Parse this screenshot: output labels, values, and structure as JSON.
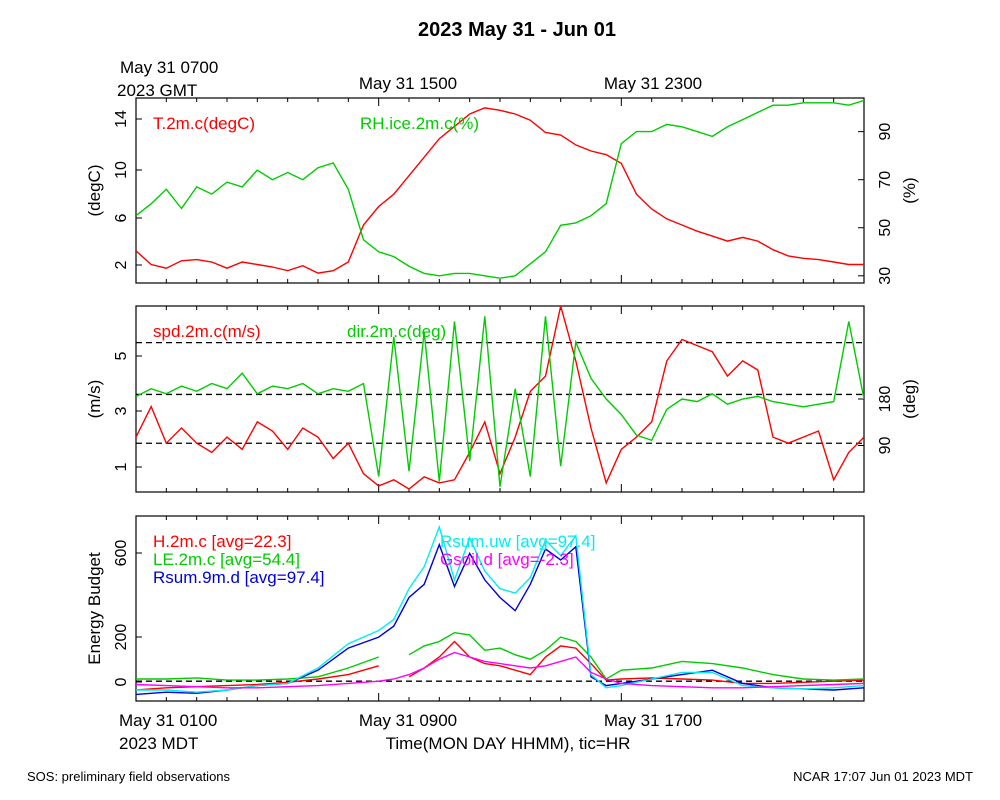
{
  "page": {
    "title": "2023 May 31 - Jun 01",
    "footer_left": "SOS: preliminary field observations",
    "footer_right": "NCAR 17:07 Jun 01 2023 MDT",
    "top_axis": {
      "first_line1": "May 31 0700",
      "first_line2": "2023 GMT",
      "tick2": "May 31 1500",
      "tick3": "May 31 2300"
    },
    "bottom_axis": {
      "first_line1": "May 31 0100",
      "first_line2": "2023 MDT",
      "tick2": "May 31 0900",
      "tick3": "May 31 1700",
      "xlabel": "Time(MON DAY HHMM), tic=HR"
    }
  },
  "colors": {
    "red": "#ff0000",
    "green": "#00cc00",
    "blue": "#0000dd",
    "cyan": "#00eeee",
    "magenta": "#ff00ff"
  },
  "chart_data": [
    {
      "type": "line",
      "x_unit": "hours since May 31 0100 MDT",
      "xlim": [
        0,
        24
      ],
      "ylabel_left": "(degC)",
      "ylabel_right": "(%)",
      "left_ticks": [
        "2",
        "6",
        "10",
        "14"
      ],
      "right_ticks": [
        "30",
        "50",
        "70",
        "90"
      ],
      "ylim_left": [
        0.8,
        15.8
      ],
      "ylim_right": [
        27,
        104
      ],
      "series": [
        {
          "name": "T.2m.c(degC)",
          "color": "red",
          "axis": "left",
          "x": [
            0,
            0.5,
            1,
            1.5,
            2,
            2.5,
            3,
            3.5,
            4,
            4.5,
            5,
            5.5,
            6,
            6.5,
            7,
            7.5,
            8,
            8.5,
            9,
            9.5,
            10,
            10.5,
            11,
            11.5,
            12,
            12.5,
            13,
            13.5,
            14,
            14.5,
            15,
            15.5,
            16,
            16.5,
            17,
            17.5,
            18,
            18.5,
            19,
            19.5,
            20,
            20.5,
            21,
            21.5,
            22,
            22.5,
            23,
            23.5,
            24
          ],
          "y": [
            3.4,
            2.3,
            2.0,
            2.6,
            2.7,
            2.5,
            2.0,
            2.5,
            2.3,
            2.1,
            1.8,
            2.2,
            1.6,
            1.8,
            2.5,
            5.5,
            7.0,
            8.0,
            9.5,
            11.0,
            12.5,
            13.5,
            14.5,
            15.0,
            14.8,
            14.5,
            14.0,
            13.0,
            12.8,
            12.0,
            11.5,
            11.2,
            10.5,
            8.0,
            6.8,
            6.0,
            5.5,
            5.0,
            4.6,
            4.2,
            4.5,
            4.2,
            3.5,
            3.0,
            2.8,
            2.7,
            2.5,
            2.3,
            2.3
          ]
        },
        {
          "name": "RH.ice.2m.c(%)",
          "color": "green",
          "axis": "right",
          "x": [
            0,
            0.5,
            1,
            1.5,
            2,
            2.5,
            3,
            3.5,
            4,
            4.5,
            5,
            5.5,
            6,
            6.5,
            7,
            7.5,
            8,
            8.5,
            9,
            9.5,
            10,
            10.5,
            11,
            11.5,
            12,
            12.5,
            13,
            13.5,
            14,
            14.5,
            15,
            15.5,
            16,
            16.5,
            17,
            17.5,
            18,
            18.5,
            19,
            19.5,
            20,
            20.5,
            21,
            21.5,
            22,
            22.5,
            23,
            23.5,
            24
          ],
          "y": [
            55,
            60,
            66,
            58,
            67,
            64,
            69,
            67,
            74,
            70,
            73,
            70,
            75,
            77,
            66,
            45,
            40,
            38,
            34,
            31,
            30,
            31,
            31,
            30,
            29,
            30,
            35,
            40,
            51,
            52,
            55,
            60,
            85,
            90,
            90,
            93,
            92,
            90,
            88,
            92,
            95,
            98,
            101,
            101,
            102,
            102,
            102,
            101,
            103
          ]
        }
      ]
    },
    {
      "type": "line",
      "x_unit": "hours since May 31 0100 MDT",
      "xlim": [
        0,
        24
      ],
      "ylabel_left": "(m/s)",
      "ylabel_right": "(deg)",
      "left_ticks": [
        "1",
        "3",
        "5"
      ],
      "right_ticks": [
        "90",
        "180"
      ],
      "ylim_left": [
        0.2,
        6.3
      ],
      "ylim_right": [
        0,
        360
      ],
      "reference_lines_left": [
        1.8,
        3.4,
        5.1
      ],
      "series": [
        {
          "name": "spd.2m.c(m/s)",
          "color": "red",
          "axis": "left",
          "x": [
            0,
            0.5,
            1,
            1.5,
            2,
            2.5,
            3,
            3.5,
            4,
            4.5,
            5,
            5.5,
            6,
            6.5,
            7,
            7.5,
            8,
            8.5,
            9,
            9.5,
            10,
            10.5,
            11,
            11.5,
            12,
            12.5,
            13,
            13.5,
            14,
            14.5,
            15,
            15.5,
            16,
            16.5,
            17,
            17.5,
            18,
            18.5,
            19,
            19.5,
            20,
            20.5,
            21,
            21.5,
            22,
            22.5,
            23,
            23.5,
            24
          ],
          "y": [
            2.0,
            3.0,
            1.8,
            2.3,
            1.8,
            1.5,
            2.0,
            1.6,
            2.5,
            2.2,
            1.6,
            2.3,
            2.0,
            1.3,
            1.8,
            0.8,
            0.4,
            0.6,
            0.3,
            0.7,
            0.5,
            0.6,
            1.5,
            2.5,
            0.8,
            2.0,
            3.5,
            4.0,
            6.3,
            4.5,
            2.3,
            0.5,
            1.6,
            2.0,
            2.5,
            4.5,
            5.2,
            5.0,
            4.8,
            4.0,
            4.5,
            4.2,
            2.0,
            1.8,
            2.0,
            2.2,
            0.6,
            1.5,
            2.0
          ]
        },
        {
          "name": "dir.2m.c(deg)",
          "color": "green",
          "axis": "right",
          "x": [
            0,
            0.5,
            1,
            1.5,
            2,
            2.5,
            3,
            3.5,
            4,
            4.5,
            5,
            5.5,
            6,
            6.5,
            7,
            7.5,
            8,
            8.5,
            9,
            9.5,
            10,
            10.5,
            11,
            11.5,
            12,
            12.5,
            13,
            13.5,
            14,
            14.5,
            15,
            15.5,
            16,
            16.5,
            17,
            17.5,
            18,
            18.5,
            19,
            19.5,
            20,
            20.5,
            21,
            21.5,
            22,
            22.5,
            23,
            23.5,
            24
          ],
          "y": [
            185,
            200,
            190,
            205,
            195,
            210,
            200,
            230,
            190,
            205,
            200,
            210,
            190,
            200,
            195,
            210,
            30,
            300,
            40,
            310,
            20,
            330,
            60,
            340,
            10,
            200,
            30,
            340,
            50,
            290,
            220,
            180,
            150,
            110,
            100,
            160,
            180,
            175,
            190,
            170,
            180,
            185,
            175,
            170,
            165,
            170,
            175,
            330,
            180
          ]
        }
      ]
    },
    {
      "type": "line",
      "x_unit": "hours since May 31 0100 MDT",
      "xlim": [
        0,
        24
      ],
      "ylabel_left": "Energy Budget",
      "left_ticks": [
        "0",
        "200",
        "600"
      ],
      "ylim": [
        -90,
        750
      ],
      "reference_lines": [
        0
      ],
      "series": [
        {
          "name": "H.2m.c [avg=22.3]",
          "color": "red",
          "x": [
            0,
            1,
            2,
            3,
            4,
            5,
            6,
            7,
            8,
            8.5,
            9,
            9.5,
            10,
            10.5,
            11,
            11.5,
            12,
            12.5,
            13,
            13.5,
            14,
            14.5,
            15,
            15.5,
            16,
            17,
            18,
            19,
            20,
            21,
            22,
            23,
            24
          ],
          "y": [
            -40,
            -30,
            -25,
            -20,
            -15,
            -5,
            10,
            30,
            70,
            null,
            20,
            60,
            110,
            180,
            110,
            80,
            70,
            50,
            30,
            110,
            160,
            150,
            80,
            5,
            10,
            15,
            10,
            5,
            -10,
            -10,
            -5,
            0,
            5
          ]
        },
        {
          "name": "LE.2m.c [avg=54.4]",
          "color": "green",
          "x": [
            0,
            1,
            2,
            3,
            4,
            5,
            6,
            7,
            8,
            8.5,
            9,
            9.5,
            10,
            10.5,
            11,
            11.5,
            12,
            12.5,
            13,
            13.5,
            14,
            14.5,
            15,
            15.5,
            16,
            17,
            18,
            19,
            20,
            21,
            22,
            23,
            24
          ],
          "y": [
            10,
            10,
            15,
            5,
            5,
            10,
            20,
            60,
            110,
            null,
            120,
            160,
            180,
            220,
            210,
            140,
            150,
            120,
            100,
            140,
            200,
            180,
            110,
            10,
            50,
            60,
            90,
            80,
            60,
            30,
            10,
            5,
            10
          ]
        },
        {
          "name": "Rsum.9m.d [avg=97.4]",
          "color": "blue",
          "x": [
            0,
            1,
            2,
            3,
            4,
            5,
            6,
            7,
            8,
            8.5,
            9,
            9.5,
            10,
            10.5,
            11,
            11.5,
            12,
            12.5,
            13,
            13.5,
            14,
            14.5,
            15,
            15.5,
            16,
            17,
            18,
            19,
            20,
            21,
            22,
            23,
            24
          ],
          "y": [
            -60,
            -50,
            -55,
            -40,
            -20,
            -10,
            50,
            150,
            200,
            250,
            380,
            440,
            620,
            430,
            580,
            460,
            380,
            320,
            440,
            600,
            550,
            610,
            20,
            -20,
            -10,
            10,
            30,
            50,
            -10,
            -30,
            -35,
            -40,
            -30
          ]
        },
        {
          "name": "Rsum.uw [avg=97.4]",
          "color": "cyan",
          "x": [
            0,
            1,
            2,
            3,
            4,
            5,
            6,
            7,
            8,
            8.5,
            9,
            9.5,
            10,
            10.5,
            11,
            11.5,
            12,
            12.5,
            13,
            13.5,
            14,
            14.5,
            15,
            15.5,
            16,
            17,
            18,
            19,
            20,
            21,
            22,
            23,
            24
          ],
          "y": [
            -40,
            -40,
            -50,
            -40,
            -20,
            -10,
            60,
            170,
            230,
            280,
            420,
            520,
            700,
            460,
            650,
            500,
            420,
            400,
            470,
            640,
            570,
            660,
            30,
            -30,
            -20,
            10,
            40,
            40,
            -20,
            -30,
            -35,
            -30,
            -20
          ]
        },
        {
          "name": "Gsoil.d [avg=-2.3]",
          "color": "magenta",
          "x": [
            0,
            1,
            2,
            3,
            4,
            5,
            6,
            7,
            8,
            8.5,
            9,
            9.5,
            10,
            10.5,
            11,
            11.5,
            12,
            12.5,
            13,
            13.5,
            14,
            14.5,
            15,
            15.5,
            16,
            17,
            18,
            19,
            20,
            21,
            22,
            23,
            24
          ],
          "y": [
            -15,
            -20,
            -25,
            -30,
            -30,
            -25,
            -20,
            -10,
            0,
            10,
            30,
            60,
            100,
            130,
            110,
            90,
            80,
            70,
            60,
            70,
            90,
            110,
            40,
            10,
            -10,
            -20,
            -25,
            -30,
            -30,
            -25,
            -20,
            -15,
            -10
          ]
        }
      ]
    }
  ]
}
